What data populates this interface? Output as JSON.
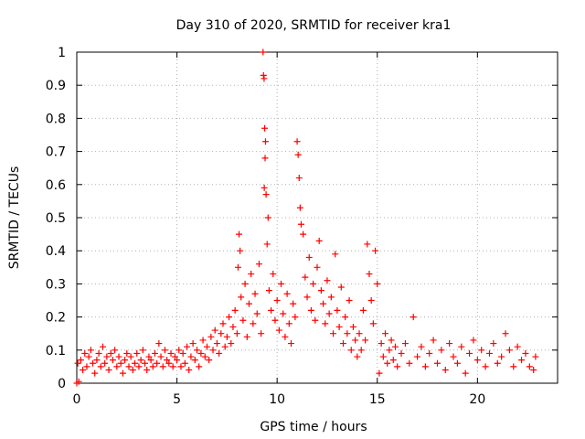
{
  "chart_data": {
    "type": "scatter",
    "title": "Day 310 of 2020, SRMTID for receiver kra1",
    "xlabel": "GPS time / hours",
    "ylabel": "SRMTID / TECUs",
    "xlim": [
      0,
      24
    ],
    "ylim": [
      0,
      1
    ],
    "x_ticks": [
      0,
      5,
      10,
      15,
      20
    ],
    "y_ticks": [
      0,
      0.1,
      0.2,
      0.3,
      0.4,
      0.5,
      0.6,
      0.7,
      0.8,
      0.9,
      1
    ],
    "grid": true,
    "marker": "+",
    "series": [
      {
        "name": "kra1",
        "color": "#ff0000",
        "points": [
          [
            0.0,
            0.0
          ],
          [
            0.1,
            0.005
          ],
          [
            0.05,
            0.06
          ],
          [
            0.2,
            0.07
          ],
          [
            0.3,
            0.04
          ],
          [
            0.4,
            0.09
          ],
          [
            0.5,
            0.05
          ],
          [
            0.6,
            0.08
          ],
          [
            0.7,
            0.1
          ],
          [
            0.8,
            0.06
          ],
          [
            0.9,
            0.03
          ],
          [
            1.0,
            0.07
          ],
          [
            1.1,
            0.09
          ],
          [
            1.2,
            0.05
          ],
          [
            1.3,
            0.11
          ],
          [
            1.4,
            0.06
          ],
          [
            1.5,
            0.08
          ],
          [
            1.6,
            0.04
          ],
          [
            1.7,
            0.09
          ],
          [
            1.8,
            0.07
          ],
          [
            1.9,
            0.1
          ],
          [
            2.0,
            0.05
          ],
          [
            2.1,
            0.08
          ],
          [
            2.2,
            0.06
          ],
          [
            2.3,
            0.03
          ],
          [
            2.4,
            0.07
          ],
          [
            2.5,
            0.09
          ],
          [
            2.6,
            0.05
          ],
          [
            2.7,
            0.08
          ],
          [
            2.8,
            0.04
          ],
          [
            2.9,
            0.06
          ],
          [
            3.0,
            0.09
          ],
          [
            3.1,
            0.05
          ],
          [
            3.2,
            0.07
          ],
          [
            3.3,
            0.1
          ],
          [
            3.4,
            0.06
          ],
          [
            3.5,
            0.04
          ],
          [
            3.6,
            0.08
          ],
          [
            3.7,
            0.07
          ],
          [
            3.8,
            0.05
          ],
          [
            3.9,
            0.09
          ],
          [
            4.0,
            0.06
          ],
          [
            4.1,
            0.12
          ],
          [
            4.2,
            0.08
          ],
          [
            4.3,
            0.05
          ],
          [
            4.4,
            0.1
          ],
          [
            4.5,
            0.07
          ],
          [
            4.6,
            0.06
          ],
          [
            4.7,
            0.09
          ],
          [
            4.8,
            0.05
          ],
          [
            4.9,
            0.08
          ],
          [
            5.0,
            0.07
          ],
          [
            5.1,
            0.1
          ],
          [
            5.2,
            0.05
          ],
          [
            5.3,
            0.09
          ],
          [
            5.4,
            0.06
          ],
          [
            5.5,
            0.11
          ],
          [
            5.6,
            0.04
          ],
          [
            5.7,
            0.08
          ],
          [
            5.8,
            0.12
          ],
          [
            5.9,
            0.07
          ],
          [
            6.0,
            0.1
          ],
          [
            6.1,
            0.05
          ],
          [
            6.2,
            0.09
          ],
          [
            6.3,
            0.13
          ],
          [
            6.4,
            0.08
          ],
          [
            6.5,
            0.11
          ],
          [
            6.6,
            0.07
          ],
          [
            6.7,
            0.14
          ],
          [
            6.8,
            0.1
          ],
          [
            6.9,
            0.16
          ],
          [
            7.0,
            0.12
          ],
          [
            7.1,
            0.09
          ],
          [
            7.2,
            0.15
          ],
          [
            7.3,
            0.18
          ],
          [
            7.4,
            0.11
          ],
          [
            7.5,
            0.14
          ],
          [
            7.6,
            0.2
          ],
          [
            7.7,
            0.12
          ],
          [
            7.8,
            0.17
          ],
          [
            7.9,
            0.22
          ],
          [
            8.0,
            0.15
          ],
          [
            8.05,
            0.35
          ],
          [
            8.1,
            0.45
          ],
          [
            8.15,
            0.4
          ],
          [
            8.2,
            0.26
          ],
          [
            8.3,
            0.19
          ],
          [
            8.4,
            0.3
          ],
          [
            8.5,
            0.14
          ],
          [
            8.6,
            0.24
          ],
          [
            8.7,
            0.33
          ],
          [
            8.8,
            0.18
          ],
          [
            8.9,
            0.27
          ],
          [
            9.0,
            0.21
          ],
          [
            9.1,
            0.36
          ],
          [
            9.2,
            0.15
          ],
          [
            9.3,
            1.0
          ],
          [
            9.32,
            0.93
          ],
          [
            9.35,
            0.92
          ],
          [
            9.38,
            0.77
          ],
          [
            9.42,
            0.73
          ],
          [
            9.4,
            0.68
          ],
          [
            9.36,
            0.59
          ],
          [
            9.45,
            0.57
          ],
          [
            9.5,
            0.42
          ],
          [
            9.55,
            0.5
          ],
          [
            9.6,
            0.28
          ],
          [
            9.7,
            0.22
          ],
          [
            9.8,
            0.33
          ],
          [
            9.9,
            0.19
          ],
          [
            10.0,
            0.25
          ],
          [
            10.1,
            0.16
          ],
          [
            10.2,
            0.3
          ],
          [
            10.3,
            0.21
          ],
          [
            10.4,
            0.14
          ],
          [
            10.5,
            0.27
          ],
          [
            10.6,
            0.18
          ],
          [
            10.7,
            0.12
          ],
          [
            10.8,
            0.24
          ],
          [
            10.9,
            0.2
          ],
          [
            11.0,
            0.73
          ],
          [
            11.05,
            0.69
          ],
          [
            11.1,
            0.62
          ],
          [
            11.15,
            0.53
          ],
          [
            11.2,
            0.48
          ],
          [
            11.3,
            0.45
          ],
          [
            11.4,
            0.32
          ],
          [
            11.5,
            0.26
          ],
          [
            11.6,
            0.38
          ],
          [
            11.7,
            0.22
          ],
          [
            11.8,
            0.3
          ],
          [
            11.9,
            0.19
          ],
          [
            12.0,
            0.35
          ],
          [
            12.1,
            0.43
          ],
          [
            12.2,
            0.28
          ],
          [
            12.3,
            0.24
          ],
          [
            12.4,
            0.18
          ],
          [
            12.5,
            0.31
          ],
          [
            12.6,
            0.21
          ],
          [
            12.7,
            0.26
          ],
          [
            12.8,
            0.15
          ],
          [
            12.9,
            0.39
          ],
          [
            13.0,
            0.22
          ],
          [
            13.1,
            0.17
          ],
          [
            13.2,
            0.29
          ],
          [
            13.3,
            0.12
          ],
          [
            13.4,
            0.2
          ],
          [
            13.5,
            0.15
          ],
          [
            13.6,
            0.25
          ],
          [
            13.7,
            0.1
          ],
          [
            13.8,
            0.17
          ],
          [
            13.9,
            0.13
          ],
          [
            14.0,
            0.08
          ],
          [
            14.1,
            0.15
          ],
          [
            14.2,
            0.1
          ],
          [
            14.3,
            0.22
          ],
          [
            14.4,
            0.13
          ],
          [
            14.5,
            0.42
          ],
          [
            14.6,
            0.33
          ],
          [
            14.7,
            0.25
          ],
          [
            14.8,
            0.18
          ],
          [
            14.9,
            0.4
          ],
          [
            15.0,
            0.3
          ],
          [
            15.1,
            0.03
          ],
          [
            15.2,
            0.12
          ],
          [
            15.3,
            0.08
          ],
          [
            15.4,
            0.15
          ],
          [
            15.5,
            0.06
          ],
          [
            15.6,
            0.1
          ],
          [
            15.7,
            0.13
          ],
          [
            15.8,
            0.07
          ],
          [
            15.9,
            0.11
          ],
          [
            16.0,
            0.05
          ],
          [
            16.2,
            0.09
          ],
          [
            16.4,
            0.12
          ],
          [
            16.6,
            0.06
          ],
          [
            16.8,
            0.2
          ],
          [
            17.0,
            0.08
          ],
          [
            17.2,
            0.11
          ],
          [
            17.4,
            0.05
          ],
          [
            17.6,
            0.09
          ],
          [
            17.8,
            0.13
          ],
          [
            18.0,
            0.06
          ],
          [
            18.2,
            0.1
          ],
          [
            18.4,
            0.04
          ],
          [
            18.6,
            0.12
          ],
          [
            18.8,
            0.08
          ],
          [
            19.0,
            0.06
          ],
          [
            19.2,
            0.11
          ],
          [
            19.4,
            0.03
          ],
          [
            19.6,
            0.09
          ],
          [
            19.8,
            0.13
          ],
          [
            20.0,
            0.07
          ],
          [
            20.2,
            0.1
          ],
          [
            20.4,
            0.05
          ],
          [
            20.6,
            0.09
          ],
          [
            20.8,
            0.12
          ],
          [
            21.0,
            0.06
          ],
          [
            21.2,
            0.08
          ],
          [
            21.4,
            0.15
          ],
          [
            21.6,
            0.1
          ],
          [
            21.8,
            0.05
          ],
          [
            22.0,
            0.11
          ],
          [
            22.2,
            0.07
          ],
          [
            22.4,
            0.09
          ],
          [
            22.6,
            0.05
          ],
          [
            22.8,
            0.04
          ],
          [
            22.9,
            0.08
          ]
        ]
      }
    ]
  }
}
